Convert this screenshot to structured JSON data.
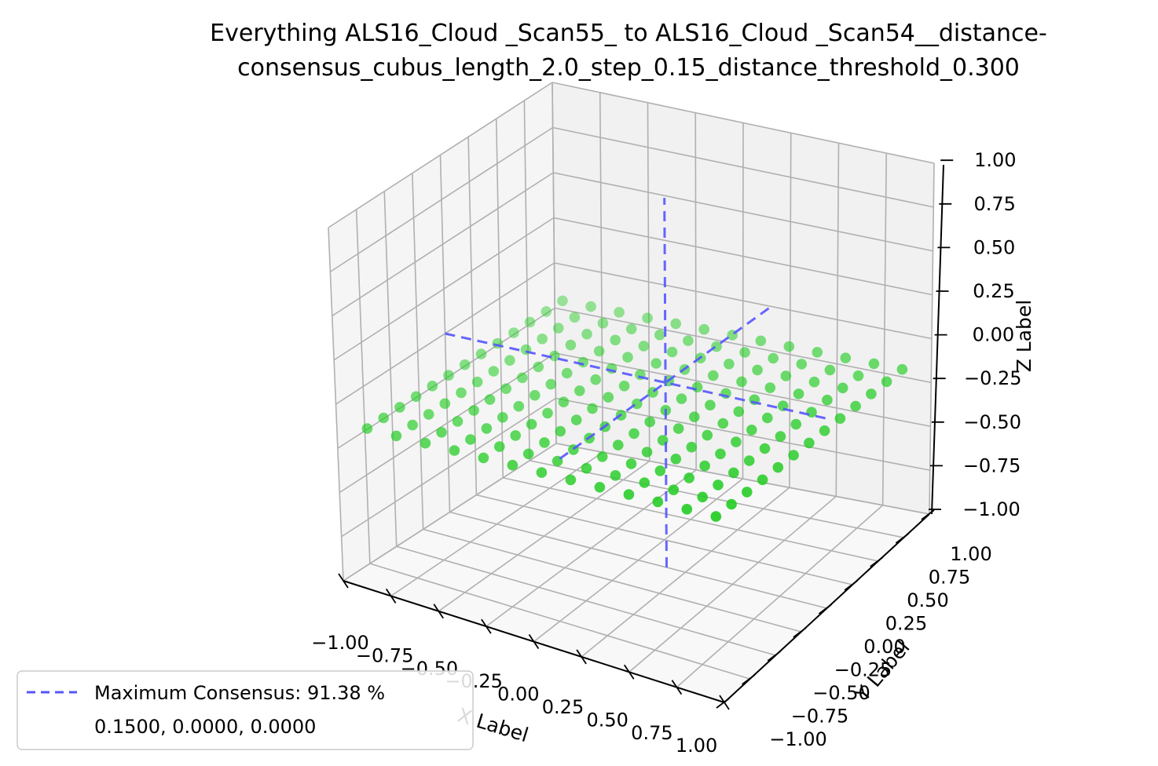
{
  "chart_data": {
    "type": "scatter",
    "projection": "3d",
    "title_lines": [
      "Everything ALS16_Cloud _Scan55_ to ALS16_Cloud _Scan54__distance-",
      "consensus_cubus_length_2.0_step_0.15_distance_threshold_0.300"
    ],
    "xlabel": "X Label",
    "ylabel": "Y Label",
    "zlabel": "Z Label",
    "xlim": [
      -1.0,
      1.0
    ],
    "ylim": [
      -1.0,
      1.0
    ],
    "zlim": [
      -1.0,
      1.0
    ],
    "x_ticks": [
      "−1.00",
      "−0.75",
      "−0.50",
      "−0.25",
      "0.00",
      "0.25",
      "0.50",
      "0.75",
      "1.00"
    ],
    "y_ticks": [
      "−1.00",
      "−0.75",
      "−0.50",
      "−0.25",
      "0.00",
      "0.25",
      "0.50",
      "0.75",
      "1.00"
    ],
    "z_ticks": [
      "−1.00",
      "−0.75",
      "−0.50",
      "−0.25",
      "0.00",
      "0.25",
      "0.50",
      "0.75",
      "1.00"
    ],
    "grid": true,
    "scatter": {
      "color": "#22cc22",
      "step": 0.15,
      "x_range": [
        -0.9,
        0.9
      ],
      "y_range": [
        -0.9,
        0.9
      ],
      "z": -0.15
    },
    "consensus_point": {
      "x": 0.15,
      "y": 0.0,
      "z": 0.0,
      "line_color": "#5555ff",
      "line_style": "dashed"
    },
    "legend": {
      "location": "lower-left",
      "entry_label": "Maximum Consensus: 91.38 %",
      "entry_sub": "0.1500, 0.0000, 0.0000"
    }
  }
}
